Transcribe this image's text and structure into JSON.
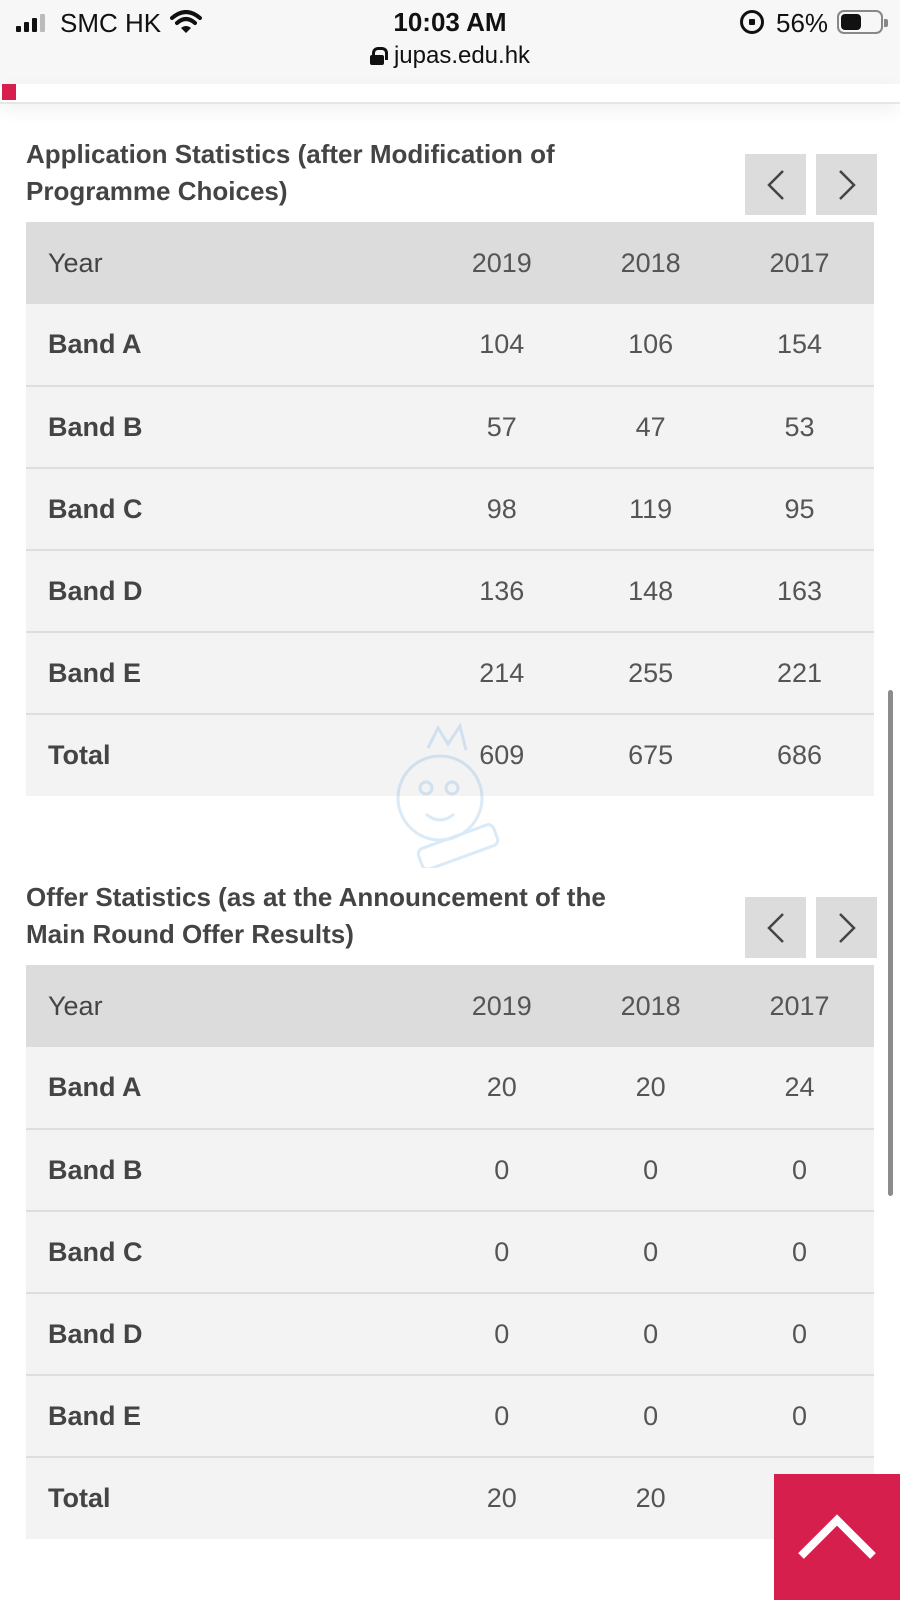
{
  "status_bar": {
    "carrier": "SMC HK",
    "time": "10:03 AM",
    "battery_percent": "56%",
    "url": "jupas.edu.hk"
  },
  "application_stats": {
    "title": "Application Statistics (after Modification of Programme Choices)",
    "header": {
      "label": "Year",
      "years": [
        "2019",
        "2018",
        "2017"
      ]
    },
    "rows": [
      {
        "label": "Band A",
        "values": [
          "104",
          "106",
          "154"
        ]
      },
      {
        "label": "Band B",
        "values": [
          "57",
          "47",
          "53"
        ]
      },
      {
        "label": "Band C",
        "values": [
          "98",
          "119",
          "95"
        ]
      },
      {
        "label": "Band D",
        "values": [
          "136",
          "148",
          "163"
        ]
      },
      {
        "label": "Band E",
        "values": [
          "214",
          "255",
          "221"
        ]
      },
      {
        "label": "Total",
        "values": [
          "609",
          "675",
          "686"
        ]
      }
    ]
  },
  "offer_stats": {
    "title": "Offer Statistics (as at the Announcement of the Main Round Offer Results)",
    "header": {
      "label": "Year",
      "years": [
        "2019",
        "2018",
        "2017"
      ]
    },
    "rows": [
      {
        "label": "Band A",
        "values": [
          "20",
          "20",
          "24"
        ]
      },
      {
        "label": "Band B",
        "values": [
          "0",
          "0",
          "0"
        ]
      },
      {
        "label": "Band C",
        "values": [
          "0",
          "0",
          "0"
        ]
      },
      {
        "label": "Band D",
        "values": [
          "0",
          "0",
          "0"
        ]
      },
      {
        "label": "Band E",
        "values": [
          "0",
          "0",
          "0"
        ]
      },
      {
        "label": "Total",
        "values": [
          "20",
          "20",
          ""
        ]
      }
    ]
  },
  "icons": {
    "prev": "chevron-left-icon",
    "next": "chevron-right-icon",
    "back_to_top": "chevron-up-icon"
  },
  "colors": {
    "accent": "#d61f4c",
    "header_bg": "#dcdcdc",
    "row_bg": "#f3f3f3"
  }
}
